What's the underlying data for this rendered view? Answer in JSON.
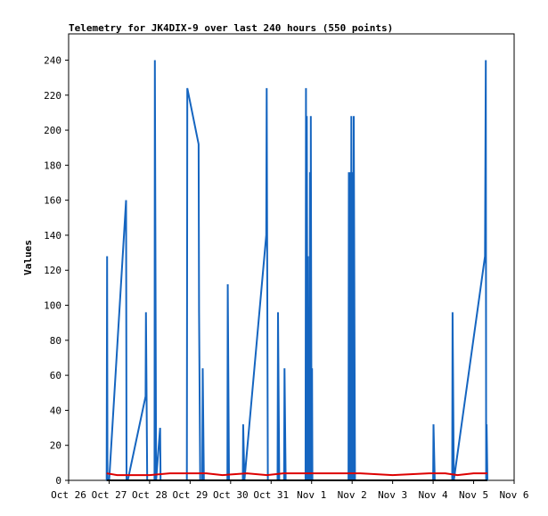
{
  "chart_data": {
    "type": "line",
    "title": "Telemetry for JK4DIX-9 over last 240 hours (550 points)",
    "xlabel": "",
    "ylabel": "Values",
    "xlim": [
      0,
      11
    ],
    "ylim": [
      0,
      255
    ],
    "x_ticks": [
      {
        "label": "Oct 26",
        "x": 0
      },
      {
        "label": "Oct 27",
        "x": 1
      },
      {
        "label": "Oct 28",
        "x": 2
      },
      {
        "label": "Oct 29",
        "x": 3
      },
      {
        "label": "Oct 30",
        "x": 4
      },
      {
        "label": "Oct 31",
        "x": 5
      },
      {
        "label": "Nov 1",
        "x": 6
      },
      {
        "label": "Nov 2",
        "x": 7
      },
      {
        "label": "Nov 3",
        "x": 8
      },
      {
        "label": "Nov 4",
        "x": 9
      },
      {
        "label": "Nov 5",
        "x": 10
      },
      {
        "label": "Nov 6",
        "x": 11
      }
    ],
    "y_ticks": [
      0,
      20,
      40,
      60,
      80,
      100,
      120,
      140,
      160,
      180,
      200,
      220,
      240
    ],
    "grid": false,
    "legend": "none",
    "series": [
      {
        "color": "#1565c0",
        "x": [
          0.94,
          0.95,
          0.96,
          1.0,
          1.42,
          1.43,
          1.46,
          1.9,
          1.91,
          1.94,
          2.12,
          2.13,
          2.16,
          2.26,
          2.27,
          2.3,
          2.92,
          2.93,
          3.21,
          3.22,
          3.25,
          3.3,
          3.31,
          3.34,
          3.92,
          3.93,
          3.96,
          4.3,
          4.31,
          4.34,
          4.34,
          4.88,
          4.89,
          4.92,
          5.16,
          5.17,
          5.2,
          5.32,
          5.33,
          5.36,
          5.85,
          5.86,
          5.87,
          5.88,
          5.9,
          5.91,
          5.92,
          5.93,
          5.95,
          5.96,
          5.97,
          5.98,
          6.0,
          6.01,
          6.02,
          6.06,
          6.07,
          6.1,
          6.91,
          6.92,
          6.94,
          6.95,
          6.97,
          6.98,
          7.0,
          7.01,
          7.03,
          7.04,
          7.07,
          7.1,
          9.0,
          9.01,
          9.04,
          9.47,
          9.48,
          9.51,
          10.28,
          10.3,
          10.31,
          10.32,
          10.34
        ],
        "y": [
          0,
          128,
          0,
          0,
          160,
          0,
          0,
          48,
          96,
          0,
          0,
          240,
          0,
          30,
          0,
          0,
          0,
          224,
          192,
          96,
          0,
          0,
          64,
          0,
          0,
          112,
          0,
          0,
          32,
          0,
          0,
          140,
          224,
          0,
          0,
          96,
          0,
          0,
          64,
          0,
          0,
          224,
          0,
          208,
          0,
          128,
          0,
          64,
          0,
          176,
          0,
          208,
          0,
          64,
          0,
          0,
          0,
          0,
          0,
          176,
          0,
          176,
          0,
          208,
          0,
          176,
          0,
          208,
          0,
          0,
          0,
          32,
          0,
          0,
          96,
          0,
          128,
          240,
          0,
          32,
          0
        ]
      },
      {
        "color": "#dd0000",
        "x": [
          0.94,
          1.2,
          1.5,
          2.0,
          2.5,
          3.0,
          3.4,
          3.8,
          4.4,
          4.9,
          5.3,
          5.8,
          6.5,
          7.0,
          7.2,
          8.0,
          8.9,
          9.3,
          9.6,
          10.0,
          10.34
        ],
        "y": [
          4,
          3,
          3,
          3,
          4,
          4,
          4,
          3,
          4,
          3,
          4,
          4,
          4,
          4,
          4,
          3,
          4,
          4,
          3,
          4,
          4
        ]
      },
      {
        "color": "#000000",
        "x": [
          0.94,
          10.34
        ],
        "y": [
          0,
          0
        ]
      }
    ]
  }
}
